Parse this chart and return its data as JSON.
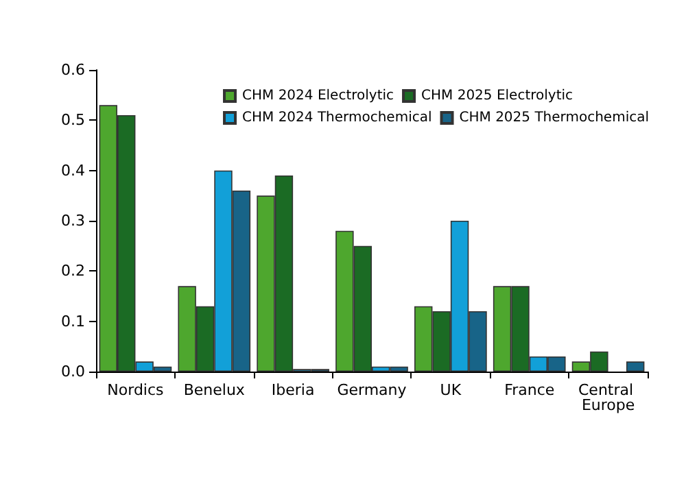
{
  "chart_data": {
    "type": "bar",
    "categories": [
      "Nordics",
      "Benelux",
      "Iberia",
      "Germany",
      "UK",
      "France",
      "Central Europe"
    ],
    "series": [
      {
        "name": "CHM 2024 Electrolytic",
        "color": "#4ea72e",
        "values": [
          0.53,
          0.17,
          0.35,
          0.28,
          0.13,
          0.17,
          0.02
        ]
      },
      {
        "name": "CHM 2025 Electrolytic",
        "color": "#1b6b24",
        "values": [
          0.51,
          0.13,
          0.39,
          0.25,
          0.12,
          0.17,
          0.04
        ]
      },
      {
        "name": "CHM 2024 Thermochemical",
        "color": "#12a0d8",
        "values": [
          0.02,
          0.4,
          0.005,
          0.01,
          0.3,
          0.03,
          null
        ]
      },
      {
        "name": "CHM 2025 Thermochemical",
        "color": "#186488",
        "values": [
          0.01,
          0.36,
          0.005,
          0.01,
          0.12,
          0.03,
          0.02
        ]
      }
    ],
    "ylim": [
      0,
      0.6
    ],
    "yticks": [
      {
        "value": 0,
        "label": "0.0"
      },
      0.1,
      0.2,
      0.3,
      0.4,
      0.5,
      0.6
    ],
    "grid": false,
    "legend": "top right"
  }
}
